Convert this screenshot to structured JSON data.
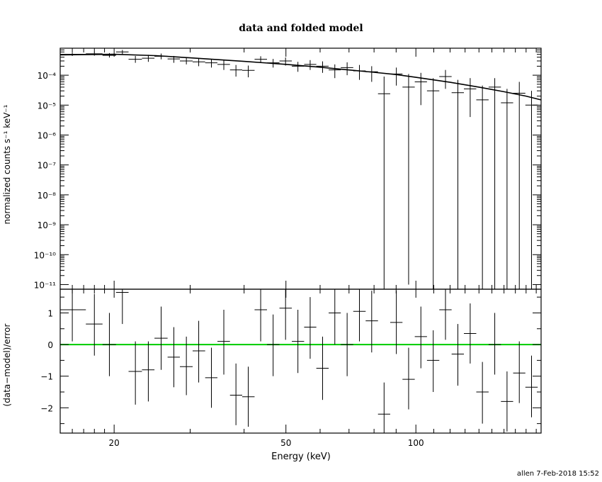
{
  "chart_data": [
    {
      "type": "scatter",
      "title": "data and folded model",
      "ylabel": "normalized counts s⁻¹ keV⁻¹",
      "xscale": "log",
      "yscale": "log",
      "xlim": [
        15,
        195
      ],
      "ylim": [
        7e-12,
        0.0008
      ],
      "x_ticks": [
        "20",
        "50",
        "100"
      ],
      "y_ticks": [
        "10⁻⁴",
        "10⁻⁵",
        "10⁻⁶",
        "10⁻⁷",
        "10⁻⁸",
        "10⁻⁹",
        "10⁻¹⁰",
        "10⁻¹¹"
      ],
      "series": [
        {
          "role": "data",
          "points": [
            {
              "x": 16.0,
              "xlo": 15.0,
              "xhi": 17.2,
              "y": 0.0005,
              "ylo": 0.00044,
              "yhi": 0.00057
            },
            {
              "x": 18.0,
              "xlo": 17.2,
              "xhi": 18.8,
              "y": 0.00052,
              "ylo": 0.00045,
              "yhi": 0.0006
            },
            {
              "x": 19.5,
              "xlo": 18.8,
              "xhi": 20.2,
              "y": 0.00046,
              "ylo": 0.00039,
              "yhi": 0.00055
            },
            {
              "x": 20.9,
              "xlo": 20.2,
              "xhi": 21.6,
              "y": 0.0006,
              "ylo": 0.0005,
              "yhi": 0.0007
            },
            {
              "x": 22.4,
              "xlo": 21.6,
              "xhi": 23.2,
              "y": 0.00034,
              "ylo": 0.00026,
              "yhi": 0.00044
            },
            {
              "x": 24.0,
              "xlo": 23.2,
              "xhi": 24.8,
              "y": 0.00037,
              "ylo": 0.00028,
              "yhi": 0.00048
            },
            {
              "x": 25.7,
              "xlo": 24.8,
              "xhi": 26.6,
              "y": 0.00043,
              "ylo": 0.00034,
              "yhi": 0.00053
            },
            {
              "x": 27.5,
              "xlo": 26.6,
              "xhi": 28.4,
              "y": 0.00035,
              "ylo": 0.00026,
              "yhi": 0.00044
            },
            {
              "x": 29.4,
              "xlo": 28.4,
              "xhi": 30.4,
              "y": 0.0003,
              "ylo": 0.00023,
              "yhi": 0.00039
            },
            {
              "x": 31.4,
              "xlo": 30.4,
              "xhi": 32.5,
              "y": 0.00028,
              "ylo": 0.0002,
              "yhi": 0.00037
            },
            {
              "x": 33.6,
              "xlo": 32.5,
              "xhi": 34.7,
              "y": 0.00026,
              "ylo": 0.00018,
              "yhi": 0.00035
            },
            {
              "x": 35.9,
              "xlo": 34.7,
              "xhi": 37.1,
              "y": 0.00023,
              "ylo": 0.00015,
              "yhi": 0.00032
            },
            {
              "x": 38.3,
              "xlo": 37.1,
              "xhi": 39.6,
              "y": 0.00015,
              "ylo": 9e-05,
              "yhi": 0.00022
            },
            {
              "x": 40.9,
              "xlo": 39.6,
              "xhi": 42.3,
              "y": 0.000145,
              "ylo": 8.5e-05,
              "yhi": 0.00021
            },
            {
              "x": 43.7,
              "xlo": 42.3,
              "xhi": 45.2,
              "y": 0.00034,
              "ylo": 0.00026,
              "yhi": 0.00043
            },
            {
              "x": 46.7,
              "xlo": 45.2,
              "xhi": 48.3,
              "y": 0.00026,
              "ylo": 0.00018,
              "yhi": 0.00035
            },
            {
              "x": 49.9,
              "xlo": 48.3,
              "xhi": 51.6,
              "y": 0.0003,
              "ylo": 0.00021,
              "yhi": 0.00039
            },
            {
              "x": 53.3,
              "xlo": 51.6,
              "xhi": 55.1,
              "y": 0.0002,
              "ylo": 0.00013,
              "yhi": 0.00028
            },
            {
              "x": 56.9,
              "xlo": 55.1,
              "xhi": 58.8,
              "y": 0.00023,
              "ylo": 0.00015,
              "yhi": 0.00032
            },
            {
              "x": 60.8,
              "xlo": 58.8,
              "xhi": 62.8,
              "y": 0.0002,
              "ylo": 0.00012,
              "yhi": 0.00029
            },
            {
              "x": 64.9,
              "xlo": 62.8,
              "xhi": 67.0,
              "y": 0.00015,
              "ylo": 8e-05,
              "yhi": 0.00023
            },
            {
              "x": 69.3,
              "xlo": 67.0,
              "xhi": 71.6,
              "y": 0.00018,
              "ylo": 0.0001,
              "yhi": 0.00027
            },
            {
              "x": 74.0,
              "xlo": 71.6,
              "xhi": 76.5,
              "y": 0.00014,
              "ylo": 7e-05,
              "yhi": 0.00022
            },
            {
              "x": 79.0,
              "xlo": 76.5,
              "xhi": 81.7,
              "y": 0.00013,
              "ylo": 6e-05,
              "yhi": 0.0002
            },
            {
              "x": 84.4,
              "xlo": 81.7,
              "xhi": 87.2,
              "y": 2.4e-05,
              "ylo": 7e-12,
              "yhi": 9e-05
            },
            {
              "x": 90.1,
              "xlo": 87.2,
              "xhi": 93.1,
              "y": 0.00011,
              "ylo": 4.5e-05,
              "yhi": 0.00018
            },
            {
              "x": 96.2,
              "xlo": 93.1,
              "xhi": 99.4,
              "y": 4e-05,
              "ylo": 1e-11,
              "yhi": 0.00011
            },
            {
              "x": 102.7,
              "xlo": 99.4,
              "xhi": 106.1,
              "y": 6e-05,
              "ylo": 1e-05,
              "yhi": 0.00012
            },
            {
              "x": 109.7,
              "xlo": 106.1,
              "xhi": 113.3,
              "y": 3e-05,
              "ylo": 7e-12,
              "yhi": 8e-05
            },
            {
              "x": 117.1,
              "xlo": 113.3,
              "xhi": 121.0,
              "y": 9e-05,
              "ylo": 3.5e-05,
              "yhi": 0.00015
            },
            {
              "x": 125.1,
              "xlo": 121.0,
              "xhi": 129.2,
              "y": 2.6e-05,
              "ylo": 7e-12,
              "yhi": 7e-05
            },
            {
              "x": 133.6,
              "xlo": 129.2,
              "xhi": 138.0,
              "y": 3.5e-05,
              "ylo": 4e-06,
              "yhi": 8e-05
            },
            {
              "x": 142.6,
              "xlo": 138.0,
              "xhi": 147.4,
              "y": 1.5e-05,
              "ylo": 7e-12,
              "yhi": 4.5e-05
            },
            {
              "x": 152.3,
              "xlo": 147.4,
              "xhi": 157.4,
              "y": 4e-05,
              "ylo": 7e-12,
              "yhi": 8e-05
            },
            {
              "x": 162.6,
              "xlo": 157.4,
              "xhi": 168.0,
              "y": 1.2e-05,
              "ylo": 7e-12,
              "yhi": 3.5e-05
            },
            {
              "x": 173.6,
              "xlo": 168.0,
              "xhi": 179.3,
              "y": 2.5e-05,
              "ylo": 7e-12,
              "yhi": 6e-05
            },
            {
              "x": 185.3,
              "xlo": 179.3,
              "xhi": 191.5,
              "y": 1e-05,
              "ylo": 7e-12,
              "yhi": 3e-05
            }
          ]
        },
        {
          "role": "model",
          "points": [
            {
              "x": 15,
              "y": 0.00048
            },
            {
              "x": 20,
              "y": 0.0005
            },
            {
              "x": 25,
              "y": 0.00045
            },
            {
              "x": 30,
              "y": 0.00038
            },
            {
              "x": 40,
              "y": 0.00029
            },
            {
              "x": 50,
              "y": 0.00023
            },
            {
              "x": 60,
              "y": 0.000185
            },
            {
              "x": 70,
              "y": 0.00015
            },
            {
              "x": 80,
              "y": 0.000125
            },
            {
              "x": 90,
              "y": 0.000105
            },
            {
              "x": 100,
              "y": 8.5e-05
            },
            {
              "x": 120,
              "y": 5.8e-05
            },
            {
              "x": 140,
              "y": 4e-05
            },
            {
              "x": 160,
              "y": 2.8e-05
            },
            {
              "x": 180,
              "y": 2e-05
            },
            {
              "x": 195,
              "y": 1.5e-05
            }
          ]
        }
      ]
    },
    {
      "type": "scatter",
      "xlabel": "Energy (keV)",
      "ylabel": "(data−model)/error",
      "xscale": "log",
      "xlim": [
        15,
        195
      ],
      "ylim": [
        -2.8,
        1.75
      ],
      "x_ticks": [
        "20",
        "50",
        "100"
      ],
      "y_ticks": [
        "1",
        "0",
        "−1",
        "−2"
      ],
      "zero_line_color": "#00cc00",
      "residuals": [
        {
          "x": 16.0,
          "xlo": 15.0,
          "xhi": 17.2,
          "y": 1.1,
          "ylo": 0.1,
          "yhi": 1.75
        },
        {
          "x": 18.0,
          "xlo": 17.2,
          "xhi": 18.8,
          "y": 0.65,
          "ylo": -0.35,
          "yhi": 1.6
        },
        {
          "x": 19.5,
          "xlo": 18.8,
          "xhi": 20.2,
          "y": 0.0,
          "ylo": -1.0,
          "yhi": 1.0
        },
        {
          "x": 20.9,
          "xlo": 20.2,
          "xhi": 21.6,
          "y": 1.65,
          "ylo": 0.65,
          "yhi": 1.75
        },
        {
          "x": 22.4,
          "xlo": 21.6,
          "xhi": 23.2,
          "y": -0.85,
          "ylo": -1.9,
          "yhi": 0.1
        },
        {
          "x": 24.0,
          "xlo": 23.2,
          "xhi": 24.8,
          "y": -0.8,
          "ylo": -1.8,
          "yhi": 0.1
        },
        {
          "x": 25.7,
          "xlo": 24.8,
          "xhi": 26.6,
          "y": 0.2,
          "ylo": -0.8,
          "yhi": 1.2
        },
        {
          "x": 27.5,
          "xlo": 26.6,
          "xhi": 28.4,
          "y": -0.4,
          "ylo": -1.35,
          "yhi": 0.55
        },
        {
          "x": 29.4,
          "xlo": 28.4,
          "xhi": 30.4,
          "y": -0.7,
          "ylo": -1.6,
          "yhi": 0.25
        },
        {
          "x": 31.4,
          "xlo": 30.4,
          "xhi": 32.5,
          "y": -0.2,
          "ylo": -1.2,
          "yhi": 0.75
        },
        {
          "x": 33.6,
          "xlo": 32.5,
          "xhi": 34.7,
          "y": -1.05,
          "ylo": -2.0,
          "yhi": -0.1
        },
        {
          "x": 35.9,
          "xlo": 34.7,
          "xhi": 37.1,
          "y": 0.1,
          "ylo": -0.95,
          "yhi": 1.1
        },
        {
          "x": 38.3,
          "xlo": 37.1,
          "xhi": 39.6,
          "y": -1.6,
          "ylo": -2.55,
          "yhi": -0.6
        },
        {
          "x": 40.9,
          "xlo": 39.6,
          "xhi": 42.3,
          "y": -1.65,
          "ylo": -2.6,
          "yhi": -0.7
        },
        {
          "x": 43.7,
          "xlo": 42.3,
          "xhi": 45.2,
          "y": 1.1,
          "ylo": 0.1,
          "yhi": 1.75
        },
        {
          "x": 46.7,
          "xlo": 45.2,
          "xhi": 48.3,
          "y": 0.0,
          "ylo": -1.0,
          "yhi": 0.95
        },
        {
          "x": 49.9,
          "xlo": 48.3,
          "xhi": 51.6,
          "y": 1.15,
          "ylo": 0.15,
          "yhi": 1.75
        },
        {
          "x": 53.3,
          "xlo": 51.6,
          "xhi": 55.1,
          "y": 0.1,
          "ylo": -0.9,
          "yhi": 1.1
        },
        {
          "x": 56.9,
          "xlo": 55.1,
          "xhi": 58.8,
          "y": 0.55,
          "ylo": -0.45,
          "yhi": 1.5
        },
        {
          "x": 60.8,
          "xlo": 58.8,
          "xhi": 62.8,
          "y": -0.75,
          "ylo": -1.75,
          "yhi": 0.25
        },
        {
          "x": 64.9,
          "xlo": 62.8,
          "xhi": 67.0,
          "y": 1.0,
          "ylo": 0.0,
          "yhi": 1.75
        },
        {
          "x": 69.3,
          "xlo": 67.0,
          "xhi": 71.6,
          "y": 0.0,
          "ylo": -1.0,
          "yhi": 1.0
        },
        {
          "x": 74.0,
          "xlo": 71.6,
          "xhi": 76.5,
          "y": 1.05,
          "ylo": 0.1,
          "yhi": 1.75
        },
        {
          "x": 79.0,
          "xlo": 76.5,
          "xhi": 81.7,
          "y": 0.75,
          "ylo": -0.25,
          "yhi": 1.7
        },
        {
          "x": 84.4,
          "xlo": 81.7,
          "xhi": 87.2,
          "y": -2.2,
          "ylo": -2.8,
          "yhi": -1.2
        },
        {
          "x": 90.1,
          "xlo": 87.2,
          "xhi": 93.1,
          "y": 0.7,
          "ylo": -0.3,
          "yhi": 1.7
        },
        {
          "x": 96.2,
          "xlo": 93.1,
          "xhi": 99.4,
          "y": -1.1,
          "ylo": -2.05,
          "yhi": -0.1
        },
        {
          "x": 102.7,
          "xlo": 99.4,
          "xhi": 106.1,
          "y": 0.25,
          "ylo": -0.75,
          "yhi": 1.2
        },
        {
          "x": 109.7,
          "xlo": 106.1,
          "xhi": 113.3,
          "y": -0.5,
          "ylo": -1.5,
          "yhi": 0.45
        },
        {
          "x": 117.1,
          "xlo": 113.3,
          "xhi": 121.0,
          "y": 1.1,
          "ylo": 0.15,
          "yhi": 1.75
        },
        {
          "x": 125.1,
          "xlo": 121.0,
          "xhi": 129.2,
          "y": -0.3,
          "ylo": -1.3,
          "yhi": 0.65
        },
        {
          "x": 133.6,
          "xlo": 129.2,
          "xhi": 138.0,
          "y": 0.35,
          "ylo": -0.6,
          "yhi": 1.3
        },
        {
          "x": 142.6,
          "xlo": 138.0,
          "xhi": 147.4,
          "y": -1.5,
          "ylo": -2.5,
          "yhi": -0.55
        },
        {
          "x": 152.3,
          "xlo": 147.4,
          "xhi": 157.4,
          "y": 0.0,
          "ylo": -0.95,
          "yhi": 1.0
        },
        {
          "x": 162.6,
          "xlo": 157.4,
          "xhi": 168.0,
          "y": -1.8,
          "ylo": -2.75,
          "yhi": -0.85
        },
        {
          "x": 173.6,
          "xlo": 168.0,
          "xhi": 179.3,
          "y": -0.9,
          "ylo": -1.85,
          "yhi": 0.1
        },
        {
          "x": 185.3,
          "xlo": 179.3,
          "xhi": 191.5,
          "y": -1.35,
          "ylo": -2.3,
          "yhi": -0.35
        }
      ]
    }
  ],
  "footer": {
    "stamp": "allen  7-Feb-2018 15:52"
  }
}
